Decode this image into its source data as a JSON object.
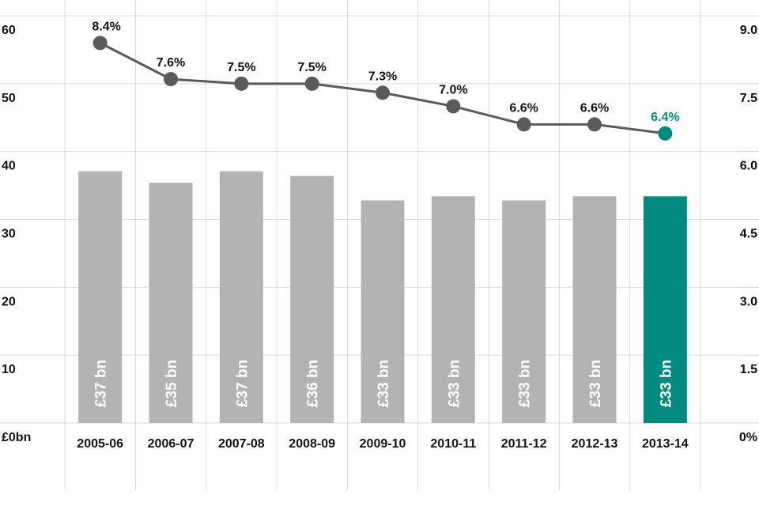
{
  "chart_data": {
    "type": "bar",
    "categories": [
      "2005-06",
      "2006-07",
      "2007-08",
      "2008-09",
      "2009-10",
      "2010-11",
      "2011-12",
      "2012-13",
      "2013-14"
    ],
    "series": [
      {
        "type": "bar",
        "values": [
          37.1,
          35.4,
          37.1,
          36.4,
          32.8,
          33.4,
          32.8,
          33.4,
          33.4
        ],
        "value_labels": [
          "£37 bn",
          "£35 bn",
          "£37 bn",
          "£36 bn",
          "£33 bn",
          "£33 bn",
          "£33 bn",
          "£33 bn",
          "£33 bn"
        ],
        "colors": [
          "#b3b3b2",
          "#b3b3b2",
          "#b3b3b2",
          "#b3b3b2",
          "#b3b3b2",
          "#b3b3b2",
          "#b3b3b2",
          "#b3b3b2",
          "#008a80"
        ]
      },
      {
        "type": "line",
        "axis": "y2",
        "color": "#5a5a5a",
        "values": [
          8.4,
          7.6,
          7.5,
          7.5,
          7.3,
          7.0,
          6.6,
          6.6,
          6.4
        ],
        "value_labels": [
          "8.4%",
          "7.6%",
          "7.5%",
          "7.5%",
          "7.3%",
          "7.0%",
          "6.6%",
          "6.6%",
          "6.4%"
        ],
        "point_colors": [
          "#5a5a5a",
          "#5a5a5a",
          "#5a5a5a",
          "#5a5a5a",
          "#5a5a5a",
          "#5a5a5a",
          "#5a5a5a",
          "#5a5a5a",
          "#008a80"
        ]
      }
    ],
    "ylim": [
      0,
      60
    ],
    "yticks": [
      {
        "value": 0,
        "label": "£0bn"
      },
      10,
      20,
      30,
      40,
      50,
      60
    ],
    "y2lim": [
      0,
      9
    ],
    "y2ticks": [
      {
        "value": 0,
        "label": "0%"
      },
      1.5,
      {
        "value": 3,
        "label": "3.0"
      },
      4.5,
      {
        "value": 6,
        "label": "6.0"
      },
      7.5,
      {
        "value": 9,
        "label": "9.0"
      }
    ],
    "grid": true
  }
}
